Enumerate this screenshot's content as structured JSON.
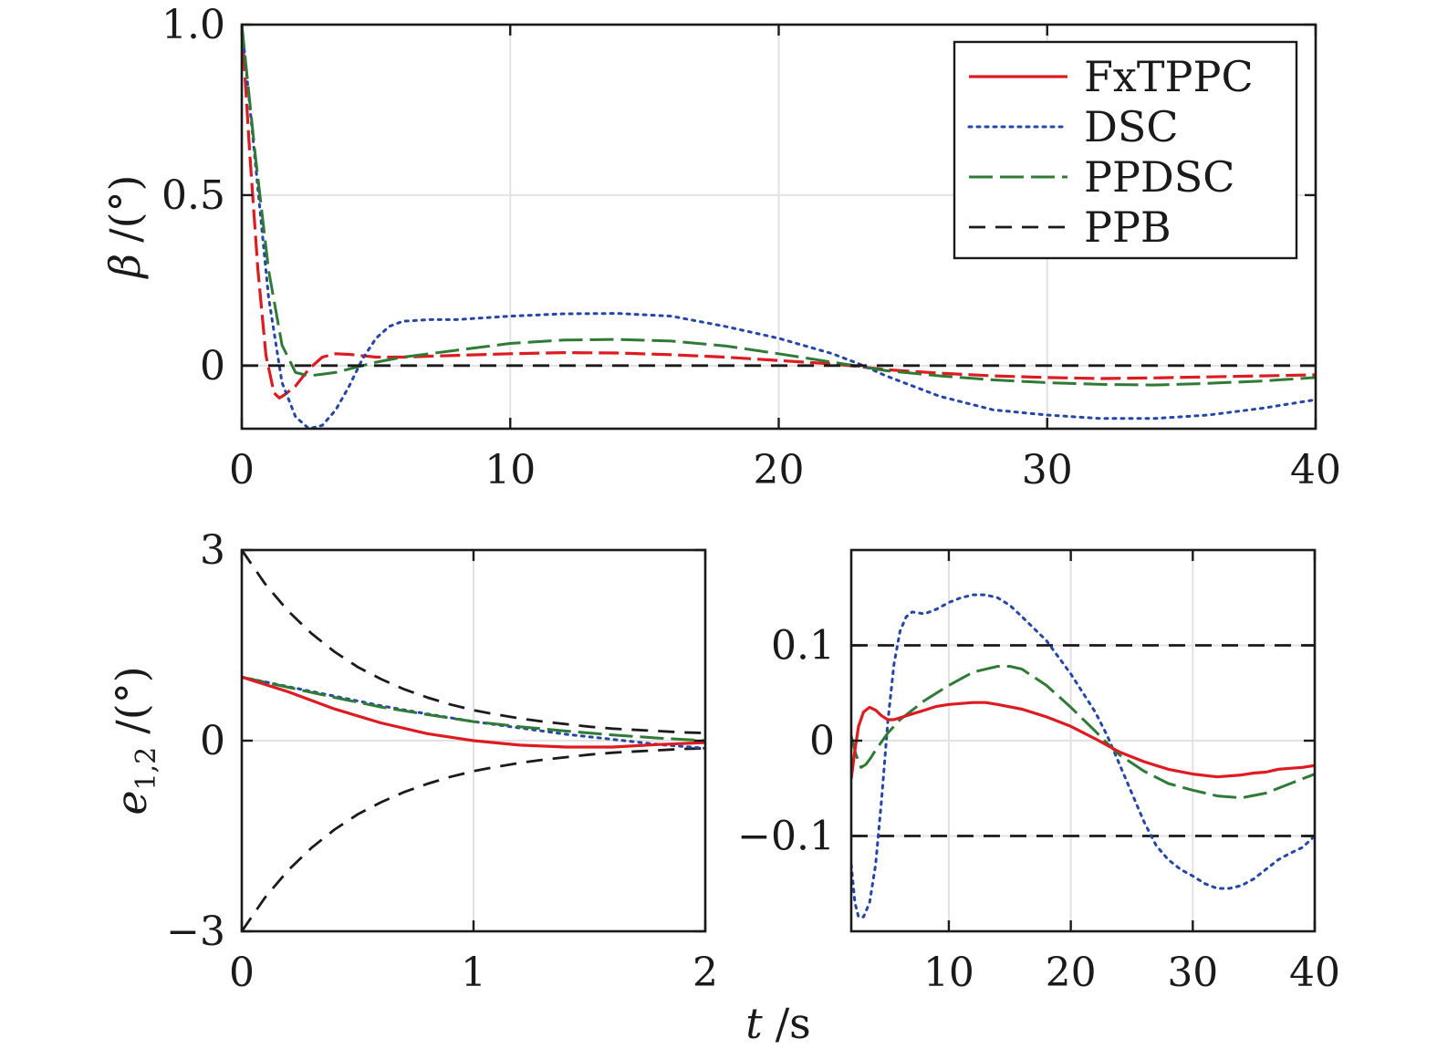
{
  "colors": {
    "FxTPPC": "#dd1c22",
    "DSC": "#2546a8",
    "PPDSC": "#2f7a35",
    "PPB": "#1a1a1a",
    "grid": "#e2e2e2",
    "axis": "#1a1a1a"
  },
  "chart_data": [
    {
      "id": "top",
      "type": "line",
      "ylabel": {
        "symbol": "β",
        "unit": "/(°)"
      },
      "xlim": [
        0,
        40
      ],
      "ylim": [
        -0.185,
        1.0
      ],
      "xticks": [
        0,
        10,
        20,
        30,
        40
      ],
      "xtick_labels": [
        "0",
        "10",
        "20",
        "30",
        "40"
      ],
      "yticks": [
        0,
        0.5,
        1.0
      ],
      "ytick_labels": [
        "0",
        "0.5",
        "1.0"
      ],
      "grid": true,
      "legend": {
        "placement": "top-right",
        "entries": [
          {
            "name": "FxTPPC",
            "style": "solid"
          },
          {
            "name": "DSC",
            "style": "dotted"
          },
          {
            "name": "PPDSC",
            "style": "dashdot"
          },
          {
            "name": "PPB",
            "style": "dashed"
          }
        ]
      },
      "series": [
        {
          "name": "FxTPPC",
          "style": "solid-dashed",
          "x": [
            0,
            0.3,
            0.6,
            0.9,
            1.2,
            1.4,
            1.6,
            2.0,
            2.5,
            3.0,
            3.5,
            4.0,
            5.0,
            6.0,
            8.0,
            10.0,
            12.0,
            14.0,
            16.0,
            18.0,
            20.0,
            22.0,
            23.0,
            24.0,
            26.0,
            28.0,
            30.0,
            32.0,
            34.0,
            36.0,
            38.0,
            40.0
          ],
          "y": [
            1.0,
            0.62,
            0.28,
            0.03,
            -0.08,
            -0.095,
            -0.085,
            -0.06,
            -0.01,
            0.025,
            0.035,
            0.033,
            0.025,
            0.025,
            0.03,
            0.035,
            0.038,
            0.037,
            0.032,
            0.025,
            0.015,
            0.005,
            -0.003,
            -0.012,
            -0.022,
            -0.03,
            -0.035,
            -0.038,
            -0.036,
            -0.033,
            -0.03,
            -0.027
          ]
        },
        {
          "name": "DSC",
          "style": "dotted",
          "x": [
            0,
            0.5,
            1.0,
            1.5,
            2.0,
            2.5,
            3.0,
            3.5,
            4.0,
            4.5,
            5.0,
            5.5,
            6.0,
            7.0,
            8.0,
            9.0,
            10.0,
            12.0,
            14.0,
            16.0,
            18.0,
            20.0,
            22.0,
            23.0,
            24.0,
            25.0,
            26.0,
            28.0,
            30.0,
            32.0,
            34.0,
            36.0,
            38.0,
            40.0
          ],
          "y": [
            1.0,
            0.6,
            0.2,
            -0.05,
            -0.15,
            -0.185,
            -0.175,
            -0.13,
            -0.06,
            0.02,
            0.08,
            0.115,
            0.13,
            0.135,
            0.135,
            0.14,
            0.145,
            0.152,
            0.153,
            0.145,
            0.115,
            0.08,
            0.035,
            0.005,
            -0.03,
            -0.06,
            -0.09,
            -0.13,
            -0.145,
            -0.155,
            -0.155,
            -0.145,
            -0.125,
            -0.1
          ]
        },
        {
          "name": "PPDSC",
          "style": "dashdot",
          "x": [
            0,
            0.5,
            1.0,
            1.5,
            2.0,
            2.5,
            3.0,
            3.5,
            4.0,
            5.0,
            6.0,
            8.0,
            10.0,
            12.0,
            14.0,
            16.0,
            18.0,
            20.0,
            22.0,
            23.0,
            24.0,
            26.0,
            28.0,
            30.0,
            32.0,
            34.0,
            36.0,
            38.0,
            40.0
          ],
          "y": [
            1.0,
            0.62,
            0.28,
            0.06,
            -0.02,
            -0.03,
            -0.025,
            -0.02,
            -0.01,
            0.01,
            0.025,
            0.045,
            0.065,
            0.075,
            0.077,
            0.072,
            0.058,
            0.035,
            0.01,
            -0.002,
            -0.015,
            -0.03,
            -0.042,
            -0.05,
            -0.055,
            -0.057,
            -0.052,
            -0.045,
            -0.035
          ]
        },
        {
          "name": "PPB",
          "style": "dashed",
          "x": [
            0,
            40
          ],
          "y": [
            0,
            0
          ]
        }
      ]
    },
    {
      "id": "bottom-left",
      "type": "line",
      "ylabel": {
        "symbol": "e",
        "subscript": "1,2",
        "unit": "/(°)"
      },
      "xlim": [
        0,
        2
      ],
      "ylim": [
        -3,
        3
      ],
      "xticks": [
        0,
        1,
        2
      ],
      "xtick_labels": [
        "0",
        "1",
        "2"
      ],
      "yticks": [
        -3,
        0,
        3
      ],
      "ytick_labels": [
        "−3",
        "0",
        "3"
      ],
      "grid": true,
      "series": [
        {
          "name": "PPB",
          "style": "dashed",
          "x": [
            0,
            0.1,
            0.2,
            0.3,
            0.4,
            0.5,
            0.6,
            0.7,
            0.8,
            0.9,
            1.0,
            1.1,
            1.2,
            1.3,
            1.4,
            1.5,
            1.6,
            1.7,
            1.8,
            1.9,
            2.0
          ],
          "y": [
            3.0,
            2.47,
            2.04,
            1.69,
            1.4,
            1.16,
            0.97,
            0.81,
            0.68,
            0.57,
            0.48,
            0.41,
            0.35,
            0.3,
            0.26,
            0.22,
            0.19,
            0.17,
            0.15,
            0.13,
            0.12
          ]
        },
        {
          "name": "PPB",
          "style": "dashed",
          "x": [
            0,
            0.1,
            0.2,
            0.3,
            0.4,
            0.5,
            0.6,
            0.7,
            0.8,
            0.9,
            1.0,
            1.1,
            1.2,
            1.3,
            1.4,
            1.5,
            1.6,
            1.7,
            1.8,
            1.9,
            2.0
          ],
          "y": [
            -3.0,
            -2.47,
            -2.04,
            -1.69,
            -1.4,
            -1.16,
            -0.97,
            -0.81,
            -0.68,
            -0.57,
            -0.48,
            -0.41,
            -0.35,
            -0.3,
            -0.26,
            -0.22,
            -0.19,
            -0.17,
            -0.15,
            -0.13,
            -0.12
          ]
        },
        {
          "name": "DSC",
          "style": "dotted",
          "x": [
            0,
            0.2,
            0.4,
            0.6,
            0.8,
            1.0,
            1.2,
            1.4,
            1.6,
            1.8,
            2.0
          ],
          "y": [
            1.0,
            0.85,
            0.7,
            0.55,
            0.42,
            0.3,
            0.2,
            0.1,
            0.02,
            -0.06,
            -0.12
          ]
        },
        {
          "name": "PPDSC",
          "style": "dashdot",
          "x": [
            0,
            0.2,
            0.4,
            0.6,
            0.8,
            1.0,
            1.2,
            1.4,
            1.6,
            1.8,
            2.0
          ],
          "y": [
            1.0,
            0.84,
            0.68,
            0.53,
            0.41,
            0.3,
            0.22,
            0.15,
            0.09,
            0.04,
            0.0
          ]
        },
        {
          "name": "FxTPPC",
          "style": "solid",
          "x": [
            0,
            0.2,
            0.4,
            0.6,
            0.8,
            1.0,
            1.2,
            1.4,
            1.6,
            1.8,
            2.0
          ],
          "y": [
            1.0,
            0.77,
            0.5,
            0.28,
            0.11,
            0.0,
            -0.07,
            -0.1,
            -0.1,
            -0.06,
            -0.03
          ]
        }
      ]
    },
    {
      "id": "bottom-right",
      "type": "line",
      "xlim": [
        2,
        40
      ],
      "ylim": [
        -0.2,
        0.2
      ],
      "xticks": [
        10,
        20,
        30,
        40
      ],
      "xtick_labels": [
        "10",
        "20",
        "30",
        "40"
      ],
      "yticks": [
        -0.1,
        0,
        0.1
      ],
      "ytick_labels": [
        "−0.1",
        "0",
        "0.1"
      ],
      "grid": true,
      "series": [
        {
          "name": "PPB",
          "style": "dashed",
          "x": [
            2,
            40
          ],
          "y": [
            0.1,
            0.1
          ]
        },
        {
          "name": "PPB",
          "style": "dashed",
          "x": [
            2,
            40
          ],
          "y": [
            -0.1,
            -0.1
          ]
        },
        {
          "name": "DSC",
          "style": "dotted",
          "x": [
            2.0,
            2.3,
            2.6,
            3.0,
            3.5,
            4.0,
            4.5,
            5.0,
            5.5,
            6.0,
            6.5,
            7.0,
            8.0,
            9.0,
            10.0,
            11.0,
            12.0,
            13.0,
            14.0,
            15.0,
            16.0,
            18.0,
            20.0,
            22.0,
            23.0,
            24.0,
            25.0,
            26.0,
            27.0,
            28.0,
            29.0,
            30.0,
            31.0,
            32.0,
            33.0,
            34.0,
            35.0,
            36.0,
            37.0,
            38.0,
            39.0,
            40.0
          ],
          "y": [
            -0.13,
            -0.17,
            -0.185,
            -0.185,
            -0.17,
            -0.13,
            -0.06,
            0.02,
            0.08,
            0.115,
            0.13,
            0.135,
            0.133,
            0.138,
            0.145,
            0.15,
            0.153,
            0.153,
            0.15,
            0.142,
            0.13,
            0.105,
            0.07,
            0.03,
            0.005,
            -0.025,
            -0.055,
            -0.085,
            -0.11,
            -0.125,
            -0.135,
            -0.142,
            -0.15,
            -0.155,
            -0.155,
            -0.152,
            -0.145,
            -0.135,
            -0.125,
            -0.118,
            -0.112,
            -0.1
          ]
        },
        {
          "name": "PPDSC",
          "style": "dashdot",
          "x": [
            2.0,
            2.4,
            2.8,
            3.2,
            3.6,
            4.0,
            5.0,
            6.0,
            7.0,
            8.0,
            10.0,
            12.0,
            14.0,
            15.0,
            16.0,
            18.0,
            20.0,
            22.0,
            23.0,
            24.0,
            26.0,
            28.0,
            30.0,
            32.0,
            34.0,
            36.0,
            38.0,
            40.0
          ],
          "y": [
            0.005,
            -0.015,
            -0.028,
            -0.025,
            -0.018,
            -0.01,
            0.008,
            0.022,
            0.032,
            0.042,
            0.058,
            0.072,
            0.078,
            0.078,
            0.075,
            0.058,
            0.035,
            0.01,
            -0.003,
            -0.015,
            -0.032,
            -0.045,
            -0.052,
            -0.058,
            -0.06,
            -0.055,
            -0.045,
            -0.035
          ]
        },
        {
          "name": "FxTPPC",
          "style": "solid",
          "x": [
            2.0,
            2.3,
            2.6,
            3.0,
            3.5,
            4.0,
            4.5,
            5.0,
            5.5,
            6.0,
            7.0,
            8.0,
            9.0,
            10.0,
            12.0,
            13.0,
            14.0,
            16.0,
            18.0,
            20.0,
            22.0,
            23.0,
            24.0,
            26.0,
            28.0,
            30.0,
            32.0,
            34.0,
            35.0,
            36.0,
            37.0,
            38.0,
            39.0,
            40.0
          ],
          "y": [
            -0.04,
            -0.01,
            0.015,
            0.03,
            0.035,
            0.032,
            0.026,
            0.022,
            0.022,
            0.024,
            0.028,
            0.032,
            0.036,
            0.038,
            0.04,
            0.04,
            0.038,
            0.033,
            0.025,
            0.015,
            0.002,
            -0.005,
            -0.012,
            -0.022,
            -0.03,
            -0.035,
            -0.038,
            -0.036,
            -0.034,
            -0.033,
            -0.03,
            -0.029,
            -0.028,
            -0.026
          ]
        }
      ]
    }
  ],
  "shared_xlabel": {
    "symbol": "t",
    "unit": "/s"
  }
}
